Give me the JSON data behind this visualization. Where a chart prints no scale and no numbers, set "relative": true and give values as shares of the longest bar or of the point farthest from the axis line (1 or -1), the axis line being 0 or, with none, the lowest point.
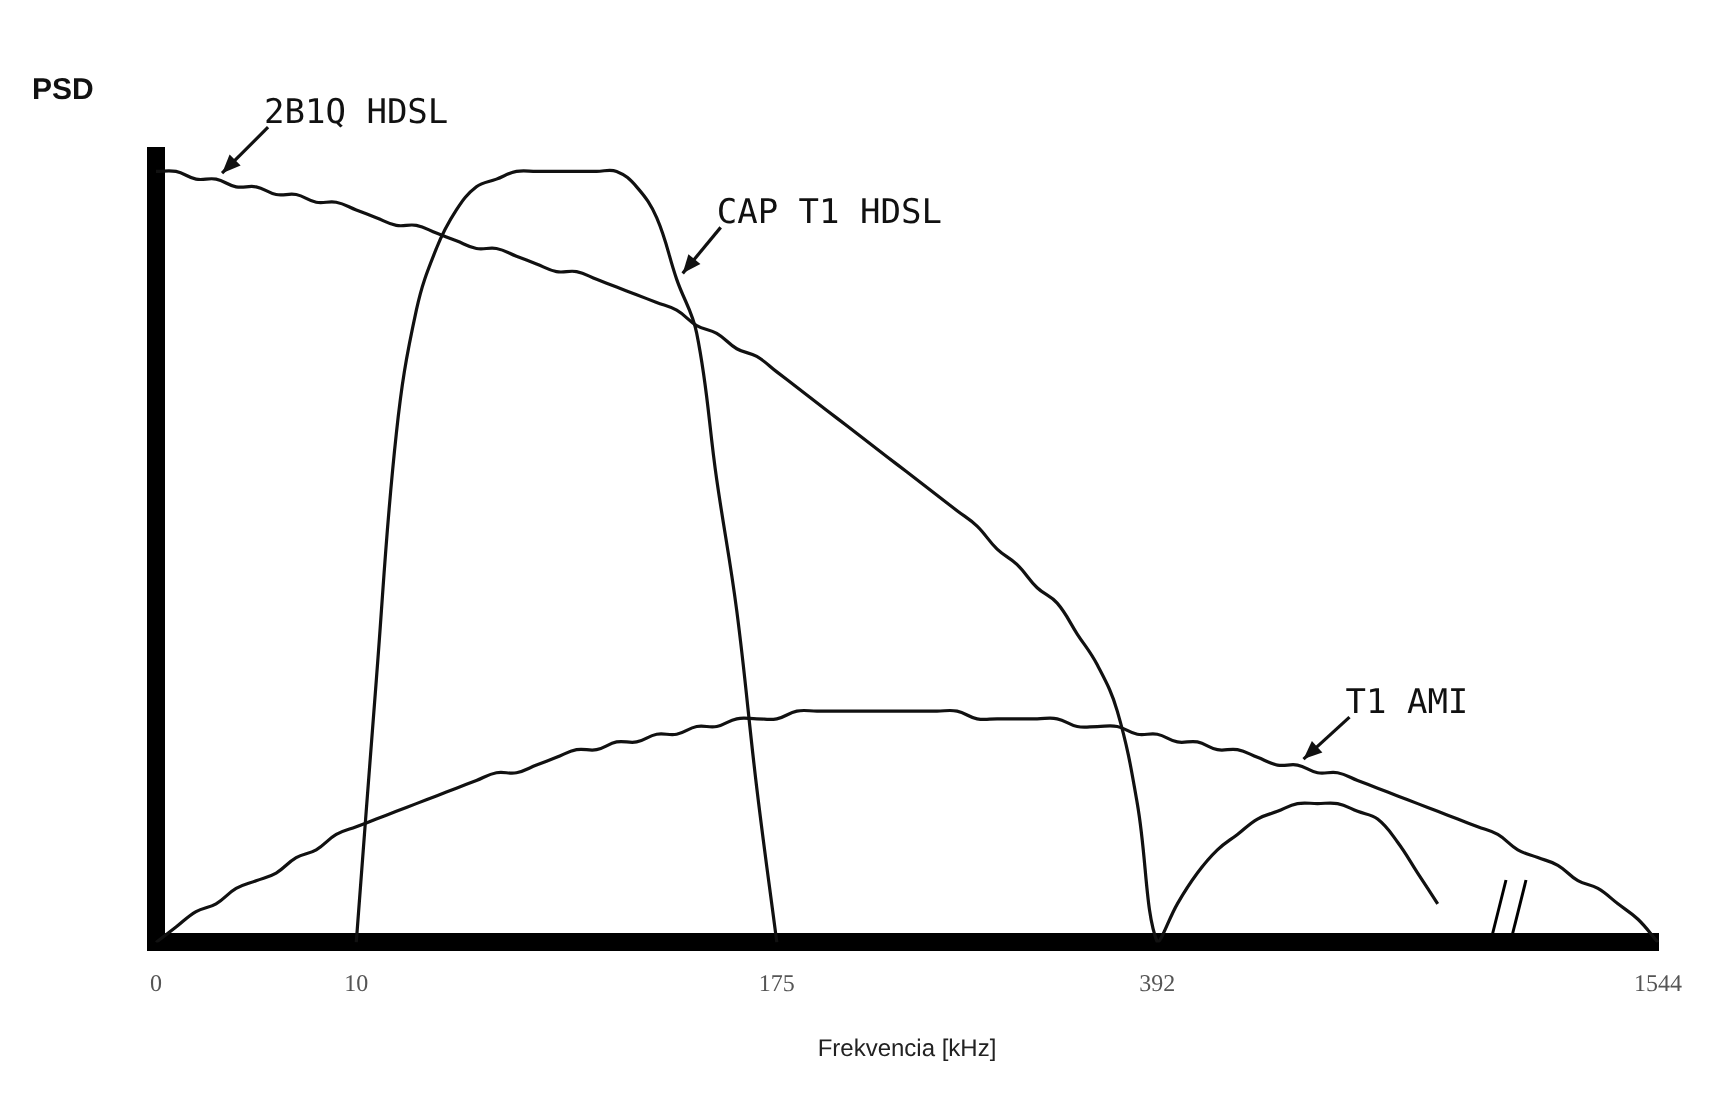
{
  "chart_data": {
    "type": "line",
    "ylabel": "PSD",
    "xlabel": "Frekvencia [kHz]",
    "relative": true,
    "grid": false,
    "legend": false,
    "marker": "none",
    "line_style": "solid",
    "categories": [
      "0",
      null,
      null,
      null,
      null,
      null,
      null,
      null,
      null,
      null,
      "10",
      null,
      null,
      null,
      null,
      null,
      null,
      null,
      null,
      null,
      null,
      null,
      null,
      null,
      null,
      null,
      null,
      null,
      null,
      null,
      null,
      "175",
      null,
      null,
      null,
      null,
      null,
      null,
      null,
      null,
      null,
      null,
      null,
      null,
      null,
      null,
      null,
      null,
      null,
      null,
      "392",
      null,
      null,
      null,
      null,
      null,
      null,
      null,
      null,
      null,
      null,
      null,
      null,
      null,
      null,
      null,
      null,
      null,
      null,
      null,
      null,
      null,
      null,
      null,
      null,
      "1544"
    ],
    "series": [
      {
        "name": "2B1Q HDSL",
        "color": "#111111",
        "values": [
          1,
          1,
          0.99,
          0.99,
          0.98,
          0.98,
          0.97,
          0.97,
          0.96,
          0.96,
          0.95,
          0.94,
          0.93,
          0.93,
          0.92,
          0.91,
          0.9,
          0.9,
          0.89,
          0.88,
          0.87,
          0.87,
          0.86,
          0.85,
          0.84,
          0.83,
          0.82,
          0.8,
          0.79,
          0.77,
          0.76,
          0.74,
          0.72,
          0.7,
          0.68,
          0.66,
          0.64,
          0.62,
          0.6,
          0.58,
          0.56,
          0.54,
          0.51,
          0.49,
          0.46,
          0.44,
          0.4,
          0.36,
          0.3,
          0.18,
          0,
          0.05,
          0.09,
          0.12,
          0.14,
          0.16,
          0.17,
          0.18,
          0.18,
          0.18,
          0.17,
          0.16,
          0.13,
          0.09,
          0.05,
          null,
          null,
          null,
          null,
          null,
          null,
          null,
          null,
          null,
          null,
          null
        ]
      },
      {
        "name": "CAP T1 HDSL",
        "color": "#111111",
        "values": [
          null,
          null,
          null,
          null,
          null,
          null,
          null,
          null,
          null,
          null,
          0,
          0.34,
          0.66,
          0.82,
          0.9,
          0.95,
          0.98,
          0.99,
          1,
          1,
          1,
          1,
          1,
          1,
          0.98,
          0.94,
          0.86,
          0.79,
          0.6,
          0.43,
          0.2,
          0,
          null,
          null,
          null,
          null,
          null,
          null,
          null,
          null,
          null,
          null,
          null,
          null,
          null,
          null,
          null,
          null,
          null,
          null,
          null,
          null,
          null,
          null,
          null,
          null,
          null,
          null,
          null,
          null,
          null,
          null,
          null,
          null,
          null,
          null,
          null,
          null,
          null,
          null,
          null,
          null,
          null,
          null,
          null,
          null
        ]
      },
      {
        "name": "T1 AMI",
        "color": "#111111",
        "values": [
          0,
          0.02,
          0.04,
          0.05,
          0.07,
          0.08,
          0.09,
          0.11,
          0.12,
          0.14,
          0.15,
          0.16,
          0.17,
          0.18,
          0.19,
          0.2,
          0.21,
          0.22,
          0.22,
          0.23,
          0.24,
          0.25,
          0.25,
          0.26,
          0.26,
          0.27,
          0.27,
          0.28,
          0.28,
          0.29,
          0.29,
          0.29,
          0.3,
          0.3,
          0.3,
          0.3,
          0.3,
          0.3,
          0.3,
          0.3,
          0.3,
          0.29,
          0.29,
          0.29,
          0.29,
          0.29,
          0.28,
          0.28,
          0.28,
          0.27,
          0.27,
          0.26,
          0.26,
          0.25,
          0.25,
          0.24,
          0.23,
          0.23,
          0.22,
          0.22,
          0.21,
          0.2,
          0.19,
          0.18,
          0.17,
          0.16,
          0.15,
          0.14,
          0.12,
          0.11,
          0.1,
          0.08,
          0.07,
          0.05,
          0.03,
          0
        ]
      }
    ]
  }
}
